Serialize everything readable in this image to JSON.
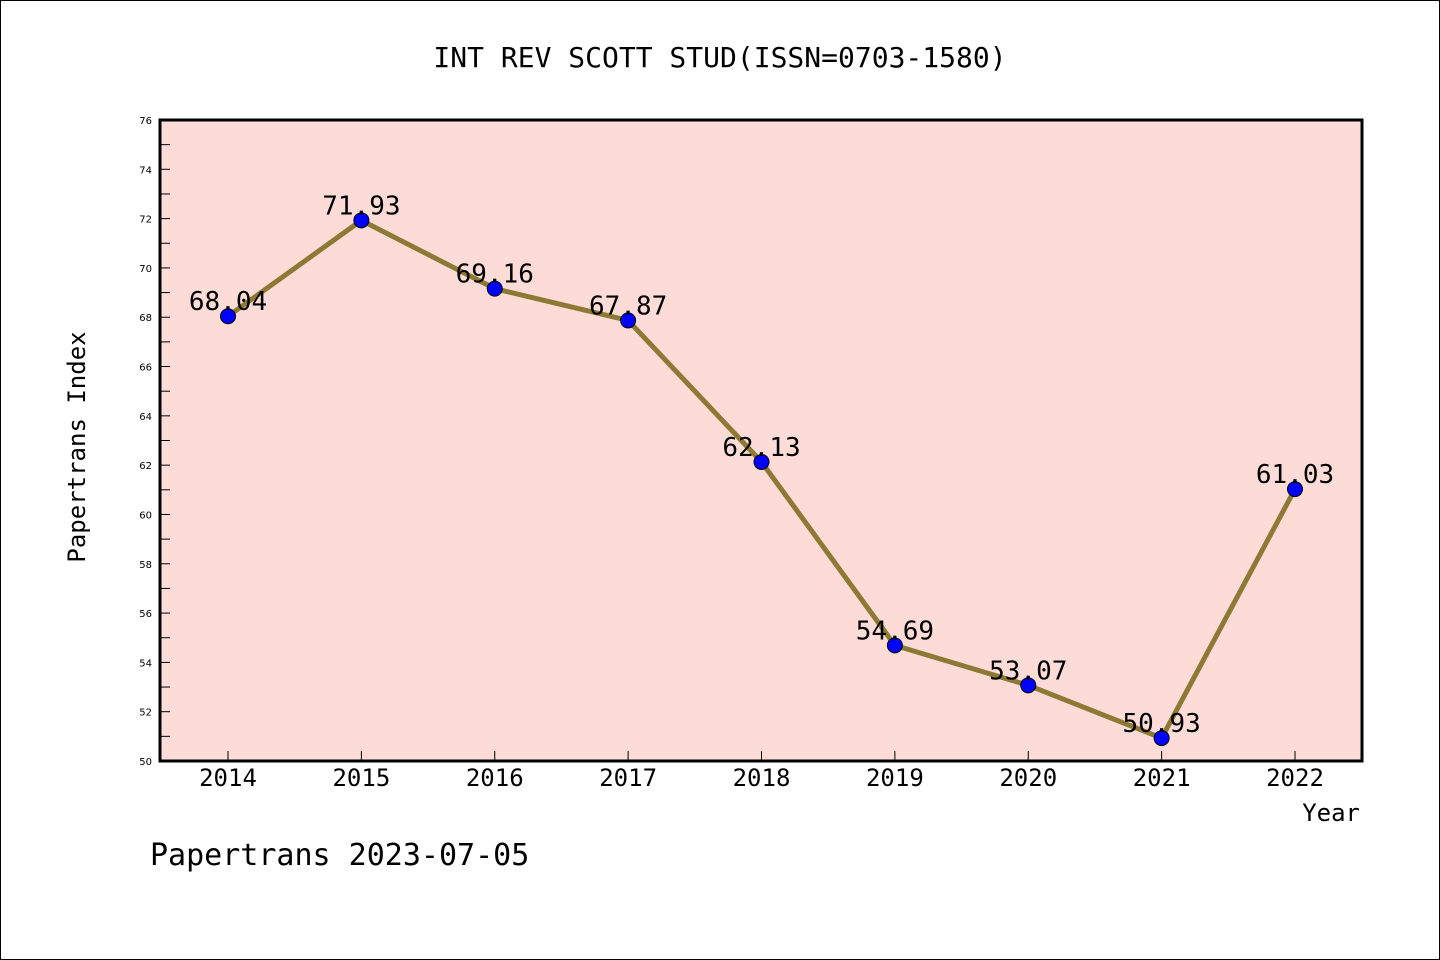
{
  "chart_data": {
    "type": "line",
    "title": "INT REV SCOTT STUD(ISSN=0703-1580)",
    "xlabel": "Year",
    "ylabel": "Papertrans Index",
    "categories": [
      "2014",
      "2015",
      "2016",
      "2017",
      "2018",
      "2019",
      "2020",
      "2021",
      "2022"
    ],
    "series": [
      {
        "values": [
          68.04,
          71.93,
          69.16,
          67.87,
          62.13,
          54.69,
          53.07,
          50.93,
          61.03
        ],
        "labels": [
          "68.04",
          "71.93",
          "69.16",
          "67.87",
          "62.13",
          "54.69",
          "53.07",
          "50.93",
          "61.03"
        ]
      }
    ],
    "ylim": [
      50,
      76
    ],
    "yticks": [
      "50",
      "52",
      "54",
      "56",
      "58",
      "60",
      "62",
      "64",
      "66",
      "68",
      "70",
      "72",
      "74",
      "76"
    ],
    "grid": false,
    "colors": {
      "plot_background": "#fddcd8",
      "line": "#8c7a34",
      "marker": "#0000ff"
    }
  },
  "footer": "Papertrans 2023-07-05"
}
